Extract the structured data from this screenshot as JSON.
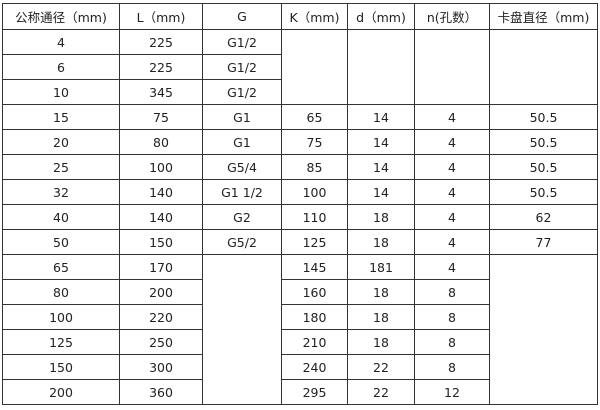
{
  "table": {
    "headers": [
      "公称通径（mm)",
      "L（mm)",
      "G",
      "K（mm)",
      "d（mm)",
      "n(孔数）",
      "卡盘直径（mm)"
    ],
    "rows": [
      [
        "4",
        "225",
        "G1/2",
        "",
        "",
        "",
        ""
      ],
      [
        "6",
        "225",
        "G1/2",
        null,
        null,
        null,
        null
      ],
      [
        "10",
        "345",
        "G1/2",
        null,
        null,
        null,
        null
      ],
      [
        "15",
        "75",
        "G1",
        "65",
        "14",
        "4",
        "50.5"
      ],
      [
        "20",
        "80",
        "G1",
        "75",
        "14",
        "4",
        "50.5"
      ],
      [
        "25",
        "100",
        "G5/4",
        "85",
        "14",
        "4",
        "50.5"
      ],
      [
        "32",
        "140",
        "G1  1/2",
        "100",
        "14",
        "4",
        "50.5"
      ],
      [
        "40",
        "140",
        "G2",
        "110",
        "18",
        "4",
        "62"
      ],
      [
        "50",
        "150",
        "G5/2",
        "125",
        "18",
        "4",
        "77"
      ],
      [
        "65",
        "170",
        "",
        "145",
        "181",
        "4",
        ""
      ],
      [
        "80",
        "200",
        null,
        "160",
        "18",
        "8",
        null
      ],
      [
        "100",
        "220",
        null,
        "180",
        "18",
        "8",
        null
      ],
      [
        "125",
        "250",
        null,
        "210",
        "18",
        "8",
        null
      ],
      [
        "150",
        "300",
        null,
        "240",
        "22",
        "8",
        null
      ],
      [
        "200",
        "360",
        null,
        "295",
        "22",
        "12",
        null
      ]
    ]
  }
}
